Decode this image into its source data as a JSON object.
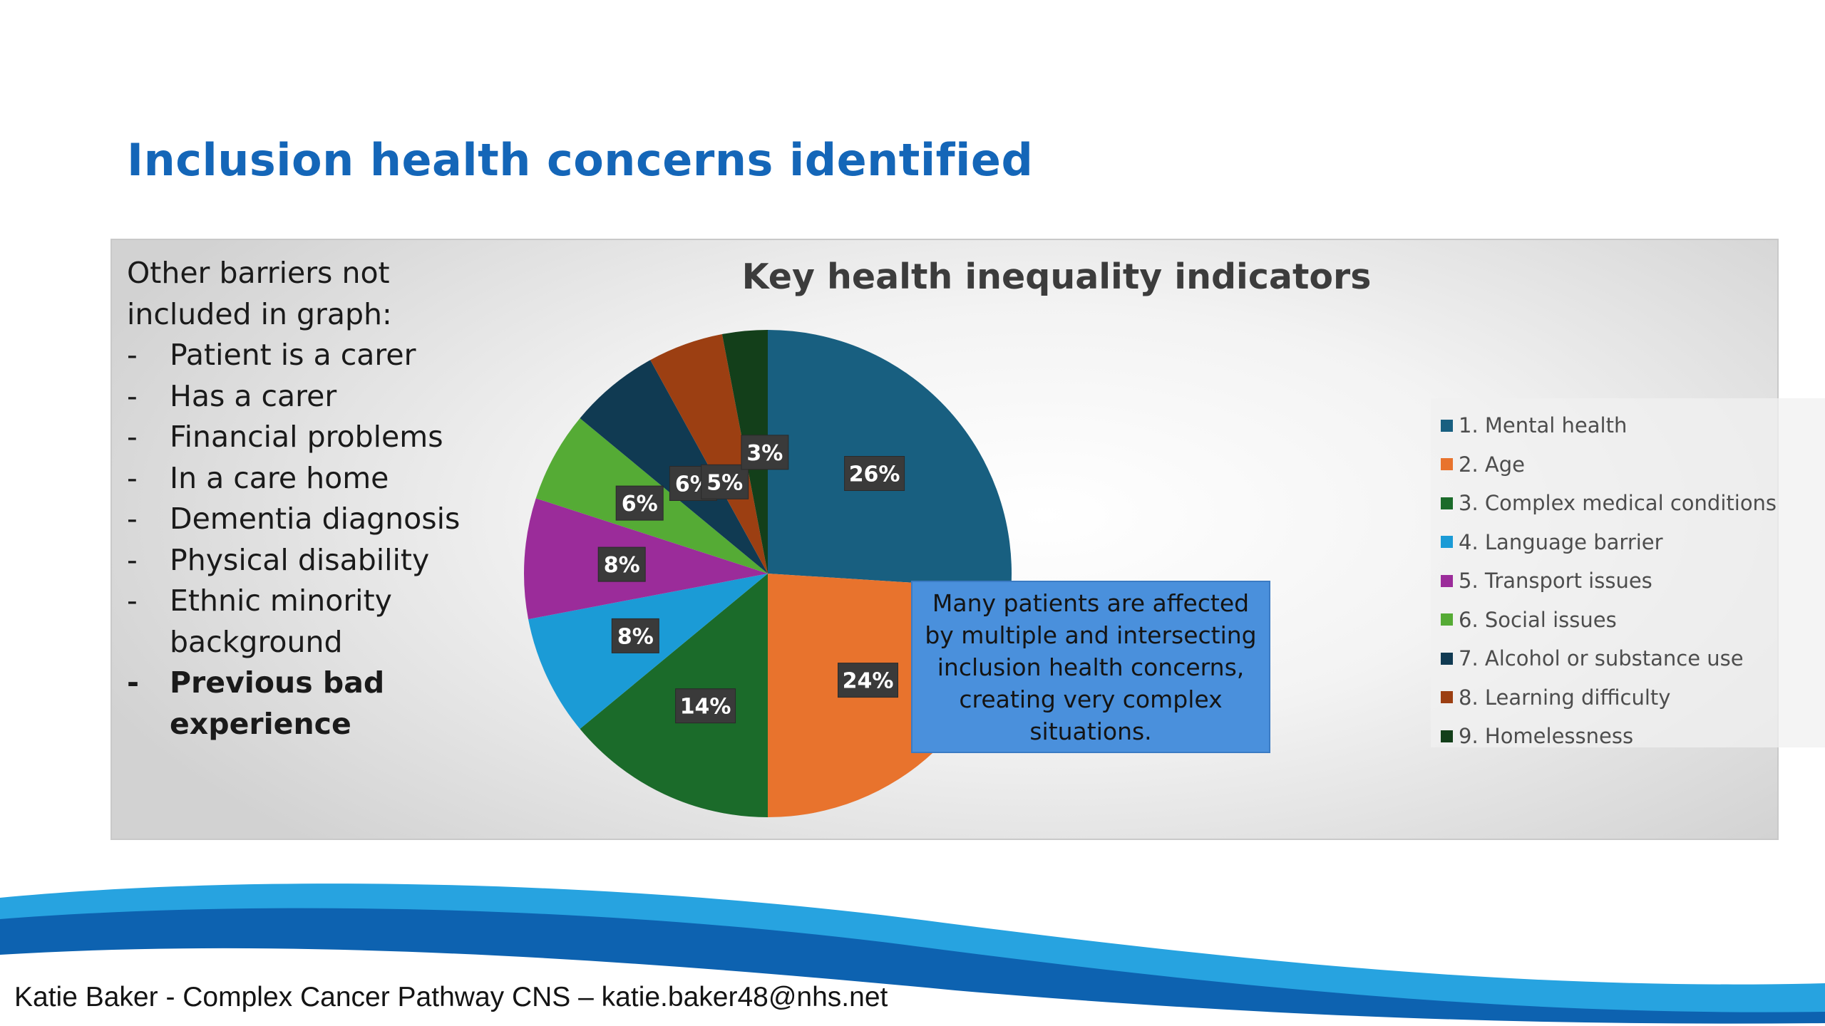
{
  "slide": {
    "title": "Inclusion health concerns identified",
    "footer": "Katie Baker - Complex Cancer Pathway CNS – katie.baker48@nhs.net"
  },
  "barriers": {
    "intro_line1": "Other barriers not",
    "intro_line2": "included in graph:",
    "items": [
      {
        "lines": [
          "Patient is a carer"
        ],
        "bold": false
      },
      {
        "lines": [
          "Has a carer"
        ],
        "bold": false
      },
      {
        "lines": [
          "Financial problems"
        ],
        "bold": false
      },
      {
        "lines": [
          "In a care home"
        ],
        "bold": false
      },
      {
        "lines": [
          "Dementia diagnosis"
        ],
        "bold": false
      },
      {
        "lines": [
          "Physical disability"
        ],
        "bold": false
      },
      {
        "lines": [
          "Ethnic minority",
          "background"
        ],
        "bold": false
      },
      {
        "lines": [
          "Previous bad",
          "experience"
        ],
        "bold": true
      }
    ]
  },
  "callout": {
    "text": "Many patients are affected by multiple and intersecting inclusion health concerns, creating very complex situations."
  },
  "chart_data": {
    "type": "pie",
    "title": "Key health inequality indicators",
    "legend_position": "right",
    "categories": [
      "1. Mental health",
      "2. Age",
      "3. Complex medical conditions",
      "4. Language barrier",
      "5. Transport issues",
      "6. Social issues",
      "7. Alcohol or substance use",
      "8. Learning difficulty",
      "9. Homelessness"
    ],
    "values": [
      26,
      24,
      14,
      8,
      8,
      6,
      6,
      5,
      3
    ],
    "labels": [
      "26%",
      "24%",
      "14%",
      "8%",
      "8%",
      "6%",
      "6%",
      "5%",
      "3%"
    ],
    "colors": [
      "#185f80",
      "#e8732d",
      "#1b6b2a",
      "#1b9bd6",
      "#9b2c9a",
      "#55ab35",
      "#103a52",
      "#9c3f12",
      "#133f1a"
    ]
  }
}
